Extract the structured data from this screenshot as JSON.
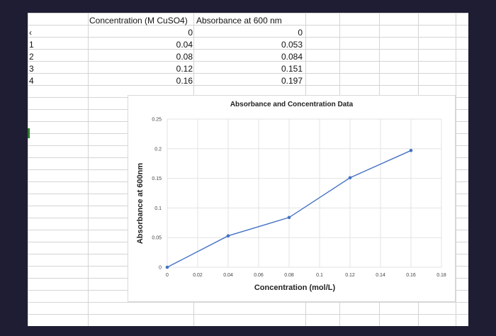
{
  "sheet": {
    "top_left_glyph": "‹",
    "header_row": {
      "col_b": "Concentration (M CuSO4)",
      "col_c": "Absorbance at 600 nm"
    },
    "rows": [
      {
        "label": "",
        "concentration": "0",
        "absorbance": "0"
      },
      {
        "label": "1",
        "concentration": "0.04",
        "absorbance": "0.053"
      },
      {
        "label": "2",
        "concentration": "0.08",
        "absorbance": "0.084"
      },
      {
        "label": "3",
        "concentration": "0.12",
        "absorbance": "0.151"
      },
      {
        "label": "4",
        "concentration": "0.16",
        "absorbance": "0.197"
      }
    ]
  },
  "chart_data": {
    "type": "line",
    "title": "Absorbance and Concentration Data",
    "xlabel": "Concentration (mol/L)",
    "ylabel": "Absorbance at 600nm",
    "x": [
      0,
      0.04,
      0.08,
      0.12,
      0.16
    ],
    "series": [
      {
        "values": [
          0,
          0.053,
          0.084,
          0.151,
          0.197
        ],
        "color": "#4472c4"
      }
    ],
    "xlim": [
      0,
      0.18
    ],
    "ylim": [
      0,
      0.25
    ],
    "x_ticks": [
      "0",
      "0.02",
      "0.04",
      "0.06",
      "0.08",
      "0.1",
      "0.12",
      "0.14",
      "0.16",
      "0.18"
    ],
    "y_ticks": [
      "0",
      "0.05",
      "0.1",
      "0.15",
      "0.2",
      "0.25"
    ],
    "grid": true,
    "legend": "none"
  }
}
